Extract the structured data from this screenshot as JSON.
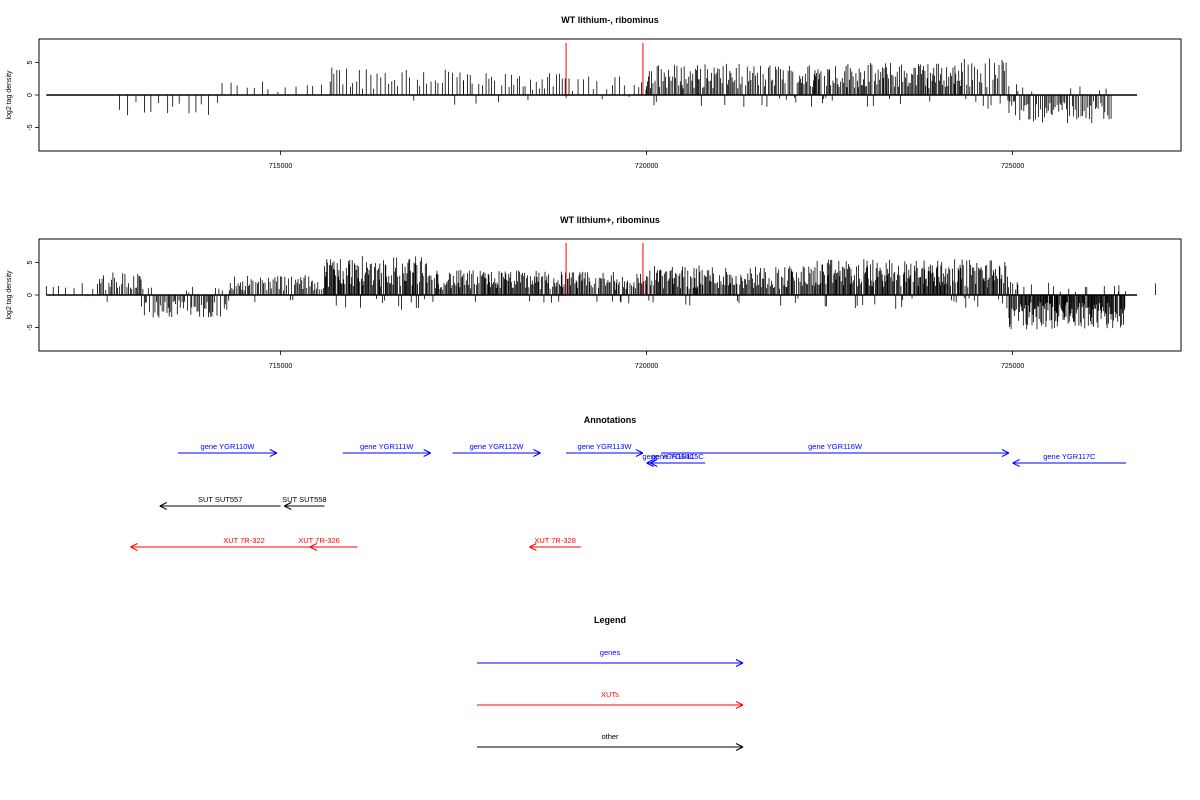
{
  "chart_data": [
    {
      "type": "bar",
      "title": "WT lithium-, ribominus",
      "ylabel": "log2 tag density",
      "xlim": [
        711700,
        727300
      ],
      "ylim": [
        -8,
        8
      ],
      "xticks": [
        "715000",
        "720000",
        "725000"
      ],
      "yticks": [
        "5",
        "0",
        "-5"
      ],
      "highlight_color": "#ff0000",
      "highlight_x": [
        718900,
        719950
      ],
      "highlight_y": 8,
      "baseline": [
        711800,
        726700
      ],
      "regions": [
        {
          "x0": 712800,
          "x1": 714200,
          "step": 100,
          "amp": -2.6
        },
        {
          "x0": 714200,
          "x1": 715700,
          "step": 120,
          "amp": 1.8
        },
        {
          "x0": 715700,
          "x1": 717500,
          "step": 45,
          "amp": 3.8
        },
        {
          "x0": 717500,
          "x1": 718900,
          "step": 40,
          "amp": 2.8
        },
        {
          "x0": 718900,
          "x1": 720000,
          "step": 55,
          "amp": 2.4
        },
        {
          "x0": 720000,
          "x1": 722300,
          "step": 18,
          "amp": 4.0
        },
        {
          "x0": 722300,
          "x1": 724300,
          "step": 16,
          "amp": 4.2
        },
        {
          "x0": 724300,
          "x1": 724950,
          "step": 20,
          "amp": 4.8
        },
        {
          "x0": 724950,
          "x1": 726350,
          "step": 20,
          "amp": -3.6
        }
      ]
    },
    {
      "type": "bar",
      "title": "WT lithium+, ribominus",
      "ylabel": "log2 tag density",
      "xlim": [
        711700,
        727300
      ],
      "ylim": [
        -8,
        8
      ],
      "xticks": [
        "715000",
        "720000",
        "725000"
      ],
      "yticks": [
        "5",
        "0",
        "-5"
      ],
      "highlight_color": "#ff0000",
      "highlight_x": [
        718900,
        719950
      ],
      "highlight_y": 8,
      "baseline": [
        711800,
        726700
      ],
      "regions": [
        {
          "x0": 711800,
          "x1": 712500,
          "step": 90,
          "amp": 1.8
        },
        {
          "x0": 712500,
          "x1": 713100,
          "step": 22,
          "amp": 3.0
        },
        {
          "x0": 713100,
          "x1": 714300,
          "step": 20,
          "amp": -2.9
        },
        {
          "x0": 714300,
          "x1": 715600,
          "step": 20,
          "amp": 2.6
        },
        {
          "x0": 715600,
          "x1": 717000,
          "step": 12,
          "amp": 5.0
        },
        {
          "x0": 717000,
          "x1": 718900,
          "step": 14,
          "amp": 3.2
        },
        {
          "x0": 718900,
          "x1": 720000,
          "step": 16,
          "amp": 3.0
        },
        {
          "x0": 720000,
          "x1": 722300,
          "step": 14,
          "amp": 3.8
        },
        {
          "x0": 722300,
          "x1": 724950,
          "step": 12,
          "amp": 4.6
        },
        {
          "x0": 724950,
          "x1": 726550,
          "step": 10,
          "amp": -4.4
        },
        {
          "x0": 726950,
          "x1": 727000,
          "step": 50,
          "amp": 2.5
        }
      ]
    }
  ],
  "annotations": {
    "title": "Annotations",
    "xlim": [
      711700,
      727300
    ],
    "features": [
      {
        "label": "gene YGR110W",
        "x0": 713600,
        "x1": 714950,
        "row": 0,
        "dir": "right",
        "color": "#0000ff"
      },
      {
        "label": "gene YGR111W",
        "x0": 715850,
        "x1": 717050,
        "row": 0,
        "dir": "right",
        "color": "#0000ff"
      },
      {
        "label": "gene YGR112W",
        "x0": 717350,
        "x1": 718550,
        "row": 0,
        "dir": "right",
        "color": "#0000ff"
      },
      {
        "label": "gene YGR113W",
        "x0": 718900,
        "x1": 719950,
        "row": 0,
        "dir": "right",
        "color": "#0000ff"
      },
      {
        "label": "gene YGR114C",
        "x0": 720000,
        "x1": 720600,
        "row": 1,
        "dir": "left",
        "color": "#0000ff"
      },
      {
        "label": "gene YGR115C",
        "x0": 720050,
        "x1": 720800,
        "row": 1,
        "dir": "left",
        "color": "#0000ff"
      },
      {
        "label": "gene YGR116W",
        "x0": 720200,
        "x1": 724950,
        "row": 0,
        "dir": "right",
        "color": "#0000ff"
      },
      {
        "label": "gene YGR117C",
        "x0": 725000,
        "x1": 726550,
        "row": 1,
        "dir": "left",
        "color": "#0000ff"
      },
      {
        "label": "SUT SUT557",
        "x0": 713350,
        "x1": 715000,
        "row": 2,
        "dir": "left",
        "color": "#000000"
      },
      {
        "label": "SUT SUT558",
        "x0": 715050,
        "x1": 715600,
        "row": 2,
        "dir": "left",
        "color": "#000000"
      },
      {
        "label": "XUT 7R-322",
        "x0": 712950,
        "x1": 716050,
        "row": 3,
        "dir": "left",
        "color": "#ff0000"
      },
      {
        "label": "XUT 7R-326",
        "x0": 715400,
        "x1": 715650,
        "row": 3,
        "dir": "left",
        "color": "#ff0000"
      },
      {
        "label": "XUT 7R-328",
        "x0": 718400,
        "x1": 719100,
        "row": 3,
        "dir": "left",
        "color": "#ff0000"
      }
    ]
  },
  "legend": {
    "title": "Legend",
    "items": [
      {
        "label": "genes",
        "color": "#0000ff"
      },
      {
        "label": "XUTs",
        "color": "#ff0000"
      },
      {
        "label": "other",
        "color": "#000000"
      }
    ]
  }
}
